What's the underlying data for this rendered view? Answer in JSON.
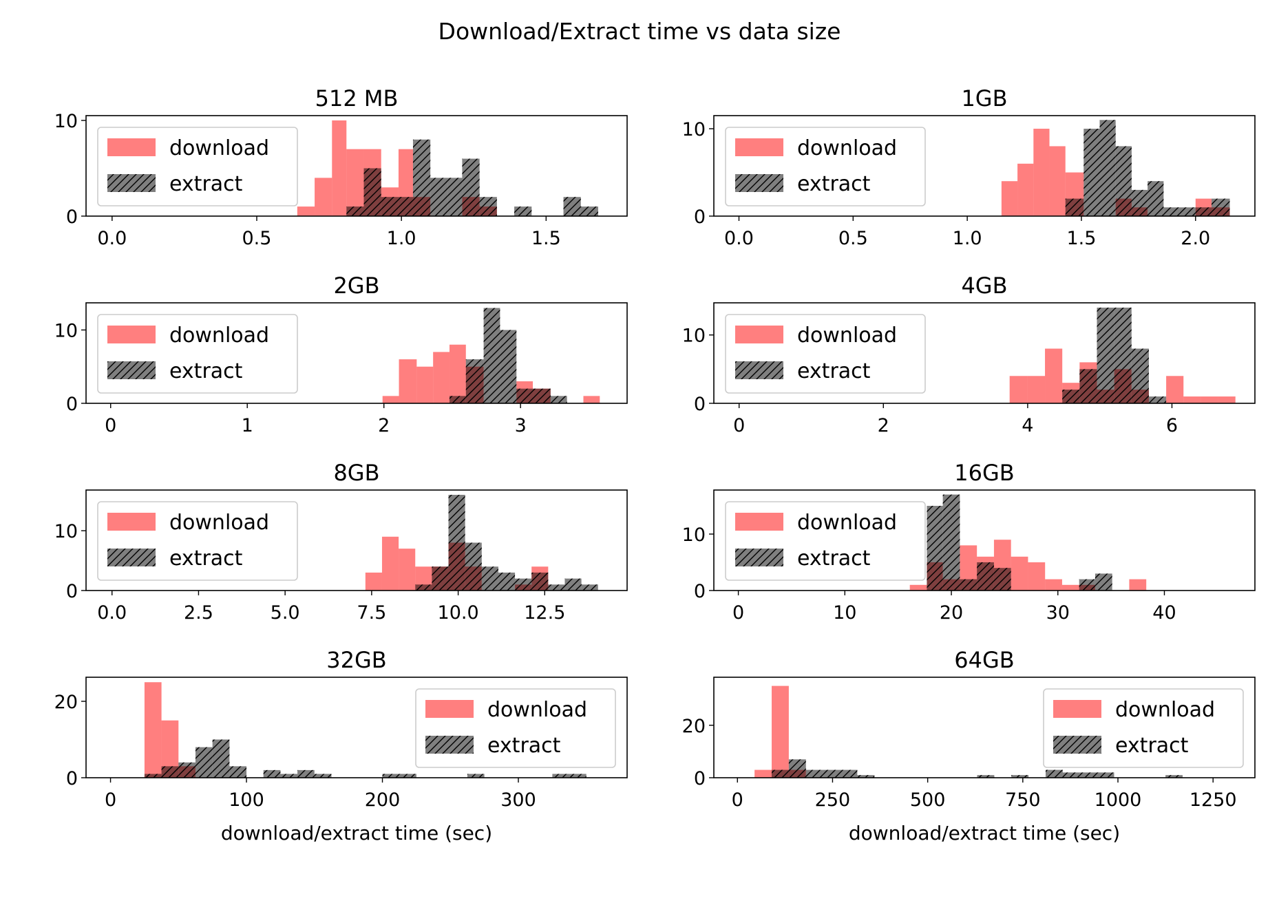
{
  "figure": {
    "suptitle": "Download/Extract time vs data size"
  },
  "colors": {
    "download": "#ff0000",
    "extract": "#000000",
    "download_alpha": 0.5,
    "extract_alpha": 0.5,
    "extract_hatch": "/"
  },
  "chart_data": [
    {
      "type": "bar",
      "title": "512 MB",
      "xlabel": "",
      "ylabel": "",
      "xlim": [
        -0.09,
        1.78
      ],
      "ylim": [
        0,
        10.5
      ],
      "xticks": [
        0,
        0.5,
        1,
        1.5
      ],
      "xtick_labels": [
        "0.0",
        "0.5",
        "1.0",
        "1.5"
      ],
      "yticks": [
        0,
        10
      ],
      "ytick_labels": [
        "0",
        "10"
      ],
      "legend": {
        "position": "upper-left",
        "entries": [
          "download",
          "extract"
        ]
      },
      "series": [
        {
          "name": "download",
          "bin_edges": [
            0.64,
            0.7,
            0.76,
            0.81,
            0.87,
            0.93,
            0.99,
            1.04,
            1.1,
            1.16,
            1.21,
            1.27,
            1.33
          ],
          "counts": [
            1,
            4,
            10,
            7,
            7,
            3,
            7,
            2,
            0,
            0,
            2,
            1
          ]
        },
        {
          "name": "extract",
          "bin_edges": [
            0.81,
            0.87,
            0.93,
            0.99,
            1.04,
            1.1,
            1.16,
            1.21,
            1.27,
            1.33,
            1.39,
            1.45,
            1.5,
            1.56,
            1.62,
            1.68
          ],
          "counts": [
            1,
            5,
            2,
            2,
            8,
            4,
            4,
            6,
            2,
            0,
            1,
            0,
            0,
            2,
            1
          ]
        }
      ]
    },
    {
      "type": "bar",
      "title": "1GB",
      "xlabel": "",
      "ylabel": "",
      "xlim": [
        -0.11,
        2.26
      ],
      "ylim": [
        0,
        11.5
      ],
      "xticks": [
        0,
        0.5,
        1,
        1.5,
        2
      ],
      "xtick_labels": [
        "0.0",
        "0.5",
        "1.0",
        "1.5",
        "2.0"
      ],
      "yticks": [
        0,
        10
      ],
      "ytick_labels": [
        "0",
        "10"
      ],
      "legend": {
        "position": "upper-left",
        "entries": [
          "download",
          "extract"
        ]
      },
      "series": [
        {
          "name": "download",
          "bin_edges": [
            1.15,
            1.22,
            1.29,
            1.36,
            1.43,
            1.51,
            1.58,
            1.65,
            1.72,
            1.79,
            1.86,
            1.93,
            2.0,
            2.07,
            2.15
          ],
          "counts": [
            4,
            6,
            10,
            8,
            5,
            0,
            0,
            2,
            1,
            0,
            0,
            0,
            2,
            1
          ]
        },
        {
          "name": "extract",
          "bin_edges": [
            1.43,
            1.51,
            1.58,
            1.65,
            1.72,
            1.79,
            1.86,
            1.93,
            2.0,
            2.07,
            2.15
          ],
          "counts": [
            2,
            10,
            11,
            8,
            3,
            4,
            1,
            1,
            1,
            2
          ]
        }
      ]
    },
    {
      "type": "bar",
      "title": "2GB",
      "xlabel": "",
      "ylabel": "",
      "xlim": [
        -0.18,
        3.78
      ],
      "ylim": [
        0,
        13.7
      ],
      "xticks": [
        0,
        1,
        2,
        3
      ],
      "xtick_labels": [
        "0",
        "1",
        "2",
        "3"
      ],
      "yticks": [
        0,
        10
      ],
      "ytick_labels": [
        "0",
        "10"
      ],
      "legend": {
        "position": "upper-left",
        "entries": [
          "download",
          "extract"
        ]
      },
      "series": [
        {
          "name": "download",
          "bin_edges": [
            1.99,
            2.11,
            2.24,
            2.36,
            2.48,
            2.6,
            2.73,
            2.85,
            2.97,
            3.09,
            3.22,
            3.34,
            3.46,
            3.58
          ],
          "counts": [
            1,
            6,
            5,
            7,
            8,
            5,
            0,
            0,
            3,
            2,
            0,
            0,
            1
          ]
        },
        {
          "name": "extract",
          "bin_edges": [
            2.48,
            2.6,
            2.73,
            2.85,
            2.97,
            3.09,
            3.22,
            3.34
          ],
          "counts": [
            1,
            6,
            13,
            10,
            2,
            2,
            1
          ]
        }
      ]
    },
    {
      "type": "bar",
      "title": "4GB",
      "xlabel": "",
      "ylabel": "",
      "xlim": [
        -0.35,
        7.15
      ],
      "ylim": [
        0,
        14.7
      ],
      "xticks": [
        0,
        2,
        4,
        6
      ],
      "xtick_labels": [
        "0",
        "2",
        "4",
        "6"
      ],
      "yticks": [
        0,
        10
      ],
      "ytick_labels": [
        "0",
        "10"
      ],
      "legend": {
        "position": "upper-left",
        "entries": [
          "download",
          "extract"
        ]
      },
      "series": [
        {
          "name": "download",
          "bin_edges": [
            3.75,
            4.0,
            4.24,
            4.48,
            4.72,
            4.96,
            5.2,
            5.44,
            5.68,
            5.92,
            6.16,
            6.4,
            6.64,
            6.88
          ],
          "counts": [
            4,
            4,
            8,
            3,
            6,
            2,
            5,
            2,
            0,
            4,
            1,
            1,
            1
          ]
        },
        {
          "name": "extract",
          "bin_edges": [
            4.48,
            4.72,
            4.96,
            5.2,
            5.44,
            5.68,
            5.92
          ],
          "counts": [
            2,
            5,
            14,
            14,
            8,
            1
          ]
        }
      ]
    },
    {
      "type": "bar",
      "title": "8GB",
      "xlabel": "",
      "ylabel": "",
      "xlim": [
        -0.75,
        14.88
      ],
      "ylim": [
        0,
        16.8
      ],
      "xticks": [
        0,
        2.5,
        5,
        7.5,
        10,
        12.5
      ],
      "xtick_labels": [
        "0.0",
        "2.5",
        "5.0",
        "7.5",
        "10.0",
        "12.5"
      ],
      "yticks": [
        0,
        10
      ],
      "ytick_labels": [
        "0",
        "10"
      ],
      "legend": {
        "position": "upper-left",
        "entries": [
          "download",
          "extract"
        ]
      },
      "series": [
        {
          "name": "download",
          "bin_edges": [
            7.32,
            7.8,
            8.28,
            8.76,
            9.24,
            9.72,
            10.2,
            10.68,
            11.16,
            11.64,
            12.12,
            12.6,
            13.08,
            13.56,
            14.04
          ],
          "counts": [
            3,
            9,
            7,
            4,
            4,
            8,
            4,
            0,
            0,
            1,
            4,
            0,
            0,
            0
          ]
        },
        {
          "name": "extract",
          "bin_edges": [
            8.76,
            9.24,
            9.72,
            10.2,
            10.68,
            11.16,
            11.64,
            12.12,
            12.6,
            13.08,
            13.56,
            14.04
          ],
          "counts": [
            1,
            4,
            16,
            8,
            4,
            3,
            2,
            3,
            1,
            2,
            1
          ]
        }
      ]
    },
    {
      "type": "bar",
      "title": "16GB",
      "xlabel": "",
      "ylabel": "",
      "xlim": [
        -2.3,
        48.5
      ],
      "ylim": [
        0,
        17.8
      ],
      "xticks": [
        0,
        10,
        20,
        30,
        40
      ],
      "xtick_labels": [
        "0",
        "10",
        "20",
        "30",
        "40"
      ],
      "yticks": [
        0,
        10
      ],
      "ytick_labels": [
        "0",
        "10"
      ],
      "legend": {
        "position": "upper-left",
        "entries": [
          "download",
          "extract"
        ]
      },
      "series": [
        {
          "name": "download",
          "bin_edges": [
            16.1,
            17.7,
            19.2,
            20.8,
            22.4,
            24.0,
            25.6,
            27.2,
            28.8,
            30.4,
            32.0,
            33.5,
            35.1,
            36.7,
            38.3
          ],
          "counts": [
            1,
            5,
            2,
            8,
            6,
            9,
            6,
            5,
            2,
            1,
            1,
            0,
            0,
            2,
            1
          ]
        },
        {
          "name": "extract",
          "bin_edges": [
            17.7,
            19.2,
            20.8,
            22.4,
            24.0,
            25.6,
            27.2,
            28.8,
            30.4,
            32.0,
            33.5,
            35.1,
            36.7,
            38.3,
            39.9,
            41.5
          ],
          "counts": [
            15,
            17,
            2,
            5,
            4,
            0,
            0,
            0,
            0,
            2,
            3,
            0,
            0,
            0,
            0,
            1
          ]
        }
      ]
    },
    {
      "type": "bar",
      "title": "32GB",
      "xlabel": "download/extract time (sec)",
      "ylabel": "",
      "xlim": [
        -18,
        380
      ],
      "ylim": [
        0,
        26.3
      ],
      "xticks": [
        0,
        100,
        200,
        300
      ],
      "xtick_labels": [
        "0",
        "100",
        "200",
        "300"
      ],
      "yticks": [
        0,
        20
      ],
      "ytick_labels": [
        "0",
        "20"
      ],
      "legend": {
        "position": "upper-right",
        "entries": [
          "download",
          "extract"
        ]
      },
      "series": [
        {
          "name": "download",
          "bin_edges": [
            25,
            37.5,
            50,
            62.5
          ],
          "counts": [
            25,
            15,
            3
          ]
        },
        {
          "name": "extract",
          "bin_edges": [
            25,
            37.5,
            50,
            62.5,
            75,
            87.5,
            100,
            112.5,
            125,
            137.5,
            150,
            162.5,
            175,
            187.5,
            200,
            212.5,
            225,
            237.5,
            250,
            262.5,
            275,
            287.5,
            300,
            312.5,
            325,
            337.5,
            350
          ],
          "counts": [
            1,
            3,
            4,
            8,
            10,
            3,
            0,
            2,
            1,
            2,
            1,
            0,
            0,
            0,
            1,
            1,
            0,
            0,
            0,
            1,
            0,
            0,
            0,
            0,
            1,
            1
          ]
        }
      ]
    },
    {
      "type": "bar",
      "title": "64GB",
      "xlabel": "download/extract time (sec)",
      "ylabel": "",
      "xlim": [
        -62,
        1360
      ],
      "ylim": [
        0,
        38.3
      ],
      "xticks": [
        0,
        250,
        500,
        750,
        1000,
        1250
      ],
      "xtick_labels": [
        "0",
        "250",
        "500",
        "750",
        "1000",
        "1250"
      ],
      "yticks": [
        0,
        20
      ],
      "ytick_labels": [
        "0",
        "20"
      ],
      "legend": {
        "position": "upper-right",
        "entries": [
          "download",
          "extract"
        ]
      },
      "series": [
        {
          "name": "download",
          "bin_edges": [
            45,
            90,
            135,
            180
          ],
          "counts": [
            3,
            35,
            3
          ]
        },
        {
          "name": "extract",
          "bin_edges": [
            90,
            135,
            180,
            225,
            270,
            315,
            360,
            405,
            450,
            495,
            540,
            585,
            630,
            675,
            720,
            765,
            810,
            855,
            900,
            945,
            990,
            1035,
            1080,
            1125,
            1170
          ],
          "counts": [
            3,
            7,
            3,
            3,
            3,
            1,
            0,
            0,
            0,
            0,
            0,
            0,
            1,
            0,
            1,
            0,
            3,
            2,
            2,
            2,
            0,
            0,
            0,
            1
          ]
        }
      ]
    }
  ]
}
